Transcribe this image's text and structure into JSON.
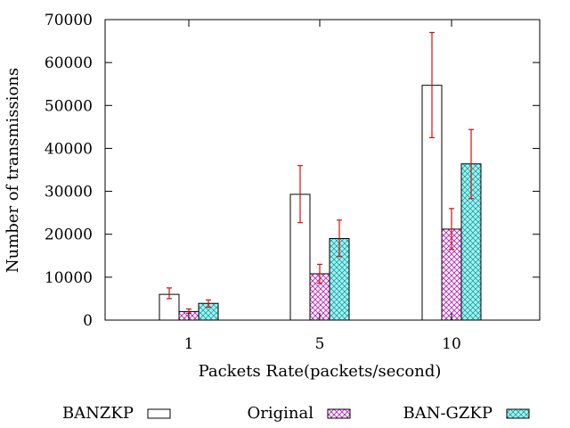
{
  "chart_data": {
    "type": "bar",
    "title": "",
    "xlabel": "Packets Rate(packets/second)",
    "ylabel": "Number of transmissions",
    "categories": [
      "1",
      "5",
      "10"
    ],
    "ylim": [
      0,
      70000
    ],
    "yticks": [
      0,
      10000,
      20000,
      30000,
      40000,
      50000,
      60000,
      70000
    ],
    "ytick_labels": [
      "0",
      "10000",
      "20000",
      "30000",
      "40000",
      "50000",
      "60000",
      "70000"
    ],
    "series": [
      {
        "name": "BANZKP",
        "pattern": "solid-white",
        "values": [
          6000,
          29300,
          54700
        ],
        "error_low": [
          5000,
          22700,
          42500
        ],
        "error_high": [
          7500,
          36000,
          67000
        ]
      },
      {
        "name": "Original",
        "pattern": "crosshatch-magenta",
        "values": [
          2000,
          10800,
          21200
        ],
        "error_low": [
          1600,
          8600,
          16500
        ],
        "error_high": [
          2600,
          13000,
          26000
        ]
      },
      {
        "name": "BAN-GZKP",
        "pattern": "crosshatch-cyan",
        "values": [
          3900,
          19000,
          36400
        ],
        "error_low": [
          3000,
          14800,
          28300
        ],
        "error_high": [
          4700,
          23300,
          44400
        ]
      }
    ],
    "colors": {
      "error_bar": "#d01010",
      "original_hatch": "#c020c0",
      "original_bg": "#ffffff",
      "gzkp_hatch": "#009999",
      "gzkp_bg": "#a8f0f0"
    },
    "legend_position": "bottom"
  }
}
